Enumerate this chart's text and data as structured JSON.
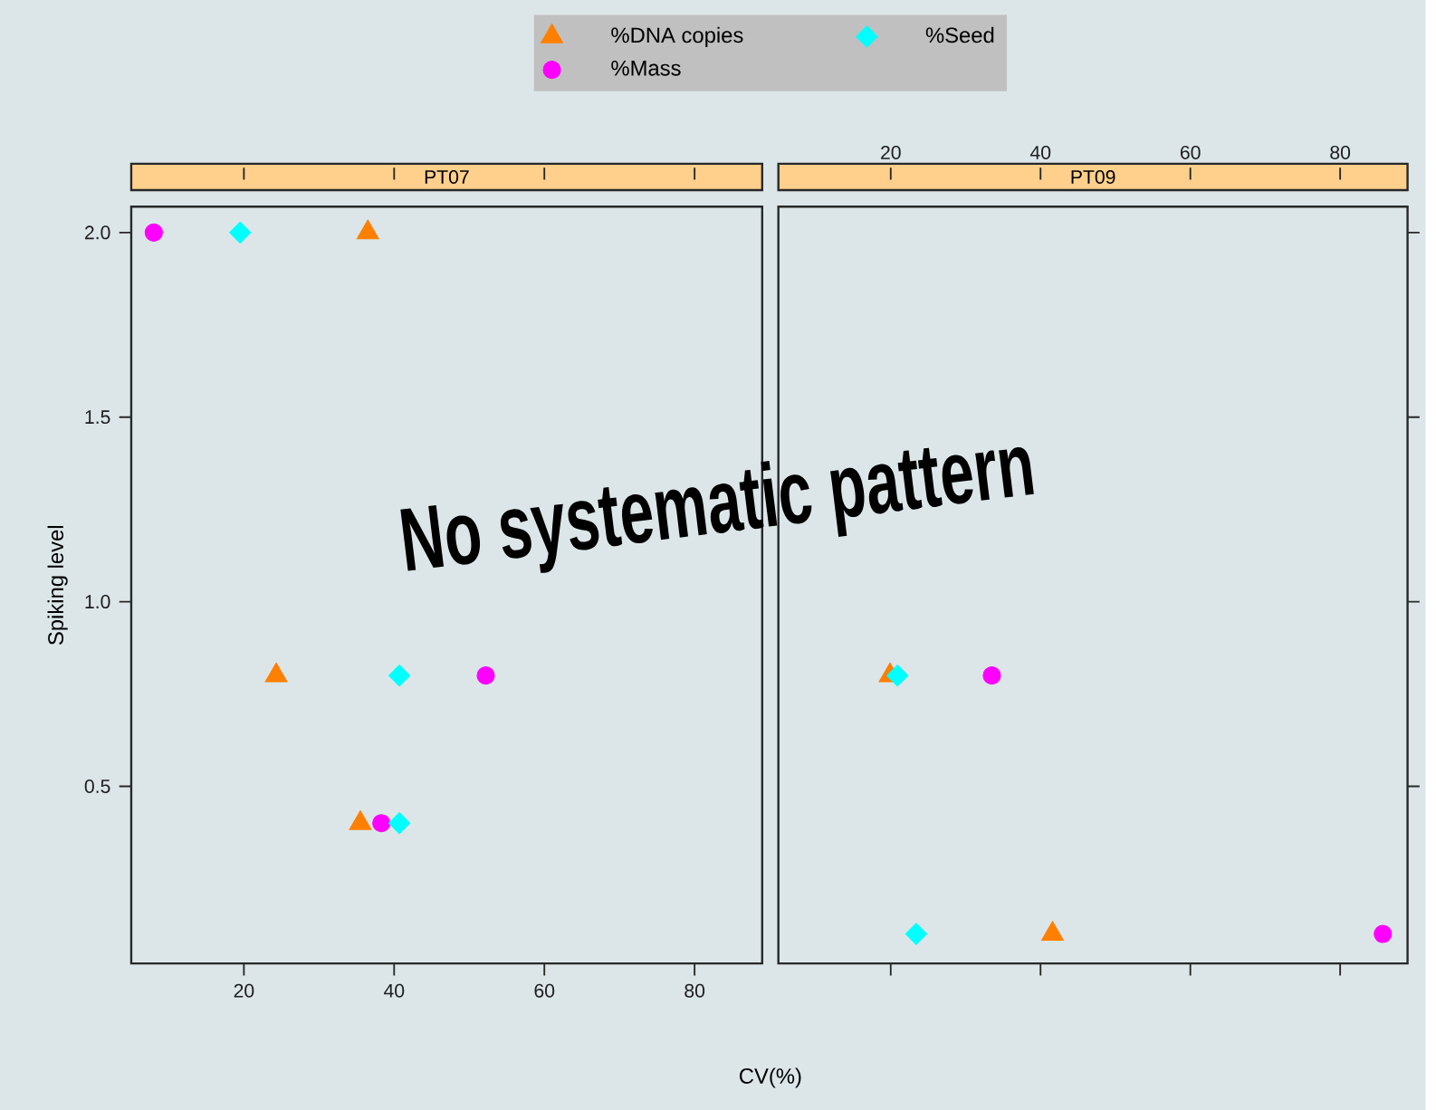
{
  "chart_data": [
    {
      "type": "scatter",
      "title": "PT07",
      "xlabel": "CV(%)",
      "ylabel": "Spiking level",
      "annotations": [
        "No systematic pattern"
      ],
      "legend": "top",
      "xlim": [
        5,
        89
      ],
      "ylim": [
        0.02,
        2.07
      ],
      "xticks": [
        20,
        40,
        60,
        80
      ],
      "yticks": [
        0.5,
        {
          "value": 1,
          "label": "1.0"
        },
        1.5,
        {
          "value": 2,
          "label": "2.0"
        }
      ],
      "series": [
        {
          "name": "%DNA copies",
          "color": "#ff7f00",
          "marker": "triangle",
          "x": [
            36.5,
            24.3,
            35.5
          ],
          "values": [
            2.0,
            0.8,
            0.4
          ]
        },
        {
          "name": "%Mass",
          "color": "#ff00ff",
          "marker": "circle",
          "x": [
            8.0,
            52.2,
            38.3
          ],
          "values": [
            2.0,
            0.8,
            0.4
          ]
        },
        {
          "name": "%Seed",
          "color": "#00ffff",
          "marker": "diamond",
          "x": [
            19.5,
            40.7,
            40.7
          ],
          "values": [
            2.0,
            0.8,
            0.4
          ]
        }
      ]
    },
    {
      "type": "scatter",
      "title": "PT09",
      "tick_labels": "x",
      "xlim": [
        5,
        89
      ],
      "ylim": [
        0.02,
        2.07
      ],
      "xticks": [
        20,
        40,
        60,
        80
      ],
      "yticks": [
        0.5,
        1.0,
        1.5,
        2.0
      ],
      "series": [
        {
          "color": "#ff7f00",
          "marker": "triangle",
          "x": [
            19.9,
            41.6
          ],
          "values": [
            0.8,
            0.1
          ]
        },
        {
          "color": "#ff00ff",
          "marker": "circle",
          "x": [
            33.5,
            85.7
          ],
          "values": [
            0.8,
            0.1
          ]
        },
        {
          "color": "#00ffff",
          "marker": "diamond",
          "x": [
            20.9,
            23.4
          ],
          "values": [
            0.8,
            0.1
          ]
        }
      ]
    }
  ]
}
